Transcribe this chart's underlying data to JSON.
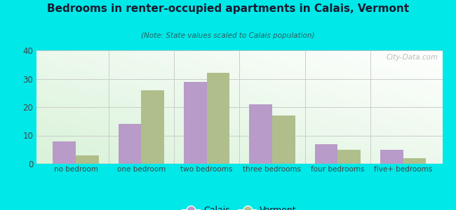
{
  "title": "Bedrooms in renter-occupied apartments in Calais, Vermont",
  "subtitle": "(Note: State values scaled to Calais population)",
  "categories": [
    "no bedroom",
    "one bedroom",
    "two bedrooms",
    "three bedrooms",
    "four bedrooms",
    "five+ bedrooms"
  ],
  "calais_values": [
    8,
    14,
    29,
    21,
    7,
    5
  ],
  "vermont_values": [
    3,
    26,
    32,
    17,
    5,
    2
  ],
  "calais_color": "#b89bc8",
  "vermont_color": "#b0be8c",
  "background_outer": "#00e8e8",
  "ylim": [
    0,
    40
  ],
  "yticks": [
    0,
    10,
    20,
    30,
    40
  ],
  "bar_width": 0.35,
  "legend_labels": [
    "Calais",
    "Vermont"
  ],
  "watermark": "City-Data.com",
  "title_color": "#1a1a2e",
  "subtitle_color": "#2a6060",
  "tick_color": "#444444"
}
